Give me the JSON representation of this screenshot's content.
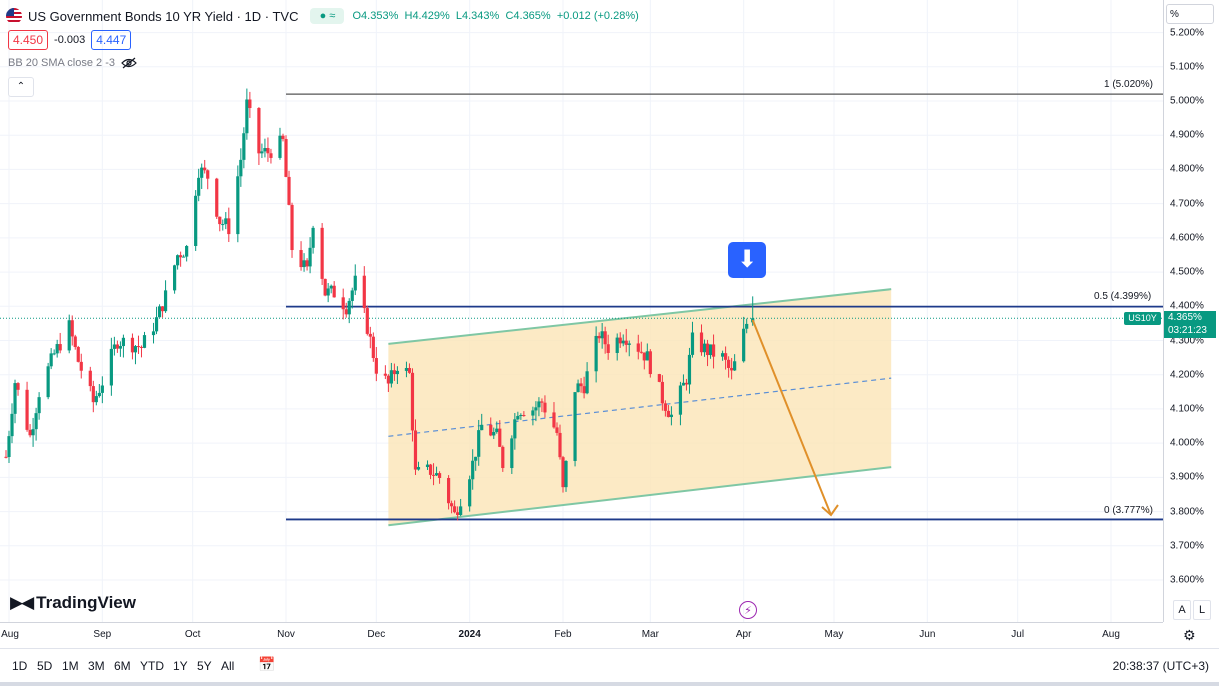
{
  "legend": {
    "title": "US Government Bonds 10 YR Yield · 1D · TVC",
    "live_icon": "market-open-icon",
    "open_label": "O",
    "open": "4.353%",
    "high_label": "H",
    "high": "4.429%",
    "low_label": "L",
    "low": "4.343%",
    "close_label": "C",
    "close": "4.365%",
    "change": "+0.012 (+0.28%)"
  },
  "quote": {
    "sell": "4.450",
    "spread": "-0.003",
    "buy": "4.447"
  },
  "indicator": {
    "label": "BB 20 SMA close 2 -3",
    "icon": "eye-hidden-icon"
  },
  "axis_unit": "%",
  "price_tag": {
    "symbol": "US10Y",
    "price": "4.365%",
    "countdown": "03:21:23"
  },
  "branding": {
    "name": "TradingView"
  },
  "ranges": [
    "1D",
    "5D",
    "1M",
    "3M",
    "6M",
    "YTD",
    "1Y",
    "5Y",
    "All"
  ],
  "clock": "20:38:37 (UTC+3)",
  "scale_buttons": {
    "auto": "A",
    "log": "L"
  },
  "colors": {
    "up": "#089981",
    "down": "#f23645",
    "channel": "#7fc7a4",
    "channel_fill": "#fbe5b6",
    "level_line": "#1e3a8a",
    "projection": "#e0902a"
  },
  "chart_data": {
    "type": "candlestick",
    "symbol": "US10Y",
    "yunit": "%",
    "ylim": [
      3.55,
      5.23
    ],
    "yticks": [
      "3.600%",
      "3.700%",
      "3.800%",
      "3.900%",
      "4.000%",
      "4.100%",
      "4.200%",
      "4.300%",
      "4.400%",
      "4.500%",
      "4.600%",
      "4.700%",
      "4.800%",
      "4.900%",
      "5.000%",
      "5.100%",
      "5.200%"
    ],
    "xticks": [
      {
        "label": "Aug",
        "date": "2023-08-01"
      },
      {
        "label": "Sep",
        "date": "2023-09-01"
      },
      {
        "label": "Oct",
        "date": "2023-10-01"
      },
      {
        "label": "Nov",
        "date": "2023-11-01"
      },
      {
        "label": "Dec",
        "date": "2023-12-01"
      },
      {
        "label": "2024",
        "date": "2024-01-01"
      },
      {
        "label": "Feb",
        "date": "2024-02-01"
      },
      {
        "label": "Mar",
        "date": "2024-03-01"
      },
      {
        "label": "Apr",
        "date": "2024-04-01"
      },
      {
        "label": "May",
        "date": "2024-05-01"
      },
      {
        "label": "Jun",
        "date": "2024-06-01"
      },
      {
        "label": "Jul",
        "date": "2024-07-01"
      },
      {
        "label": "Aug",
        "date": "2024-08-01"
      }
    ],
    "xlim": [
      "2023-08-01",
      "2024-08-31"
    ],
    "close_series": [
      [
        "2023-07-31",
        3.96
      ],
      [
        "2023-08-03",
        4.18
      ],
      [
        "2023-08-08",
        4.02
      ],
      [
        "2023-08-11",
        4.15
      ],
      [
        "2023-08-16",
        4.26
      ],
      [
        "2023-08-21",
        4.34
      ],
      [
        "2023-08-24",
        4.24
      ],
      [
        "2023-08-29",
        4.12
      ],
      [
        "2023-09-01",
        4.18
      ],
      [
        "2023-09-06",
        4.3
      ],
      [
        "2023-09-11",
        4.29
      ],
      [
        "2023-09-14",
        4.28
      ],
      [
        "2023-09-19",
        4.36
      ],
      [
        "2023-09-22",
        4.43
      ],
      [
        "2023-09-26",
        4.55
      ],
      [
        "2023-09-29",
        4.57
      ],
      [
        "2023-10-03",
        4.8
      ],
      [
        "2023-10-06",
        4.78
      ],
      [
        "2023-10-10",
        4.65
      ],
      [
        "2023-10-13",
        4.63
      ],
      [
        "2023-10-17",
        4.83
      ],
      [
        "2023-10-19",
        4.99
      ],
      [
        "2023-10-23",
        4.85
      ],
      [
        "2023-10-26",
        4.85
      ],
      [
        "2023-10-31",
        4.88
      ],
      [
        "2023-11-03",
        4.57
      ],
      [
        "2023-11-08",
        4.5
      ],
      [
        "2023-11-10",
        4.65
      ],
      [
        "2023-11-14",
        4.44
      ],
      [
        "2023-11-17",
        4.44
      ],
      [
        "2023-11-21",
        4.4
      ],
      [
        "2023-11-24",
        4.47
      ],
      [
        "2023-11-28",
        4.34
      ],
      [
        "2023-12-01",
        4.22
      ],
      [
        "2023-12-05",
        4.17
      ],
      [
        "2023-12-08",
        4.23
      ],
      [
        "2023-12-12",
        4.2
      ],
      [
        "2023-12-14",
        3.91
      ],
      [
        "2023-12-19",
        3.92
      ],
      [
        "2023-12-22",
        3.9
      ],
      [
        "2023-12-27",
        3.79
      ],
      [
        "2024-01-02",
        3.94
      ],
      [
        "2024-01-05",
        4.05
      ],
      [
        "2024-01-10",
        4.02
      ],
      [
        "2024-01-12",
        3.94
      ],
      [
        "2024-01-17",
        4.1
      ],
      [
        "2024-01-22",
        4.1
      ],
      [
        "2024-01-25",
        4.12
      ],
      [
        "2024-01-30",
        4.03
      ],
      [
        "2024-02-01",
        3.86
      ],
      [
        "2024-02-05",
        4.16
      ],
      [
        "2024-02-08",
        4.17
      ],
      [
        "2024-02-13",
        4.32
      ],
      [
        "2024-02-16",
        4.28
      ],
      [
        "2024-02-21",
        4.32
      ],
      [
        "2024-02-26",
        4.28
      ],
      [
        "2024-02-29",
        4.25
      ],
      [
        "2024-03-05",
        4.13
      ],
      [
        "2024-03-08",
        4.08
      ],
      [
        "2024-03-13",
        4.19
      ],
      [
        "2024-03-15",
        4.3
      ],
      [
        "2024-03-20",
        4.27
      ],
      [
        "2024-03-25",
        4.25
      ],
      [
        "2024-03-28",
        4.2
      ],
      [
        "2024-04-02",
        4.35
      ],
      [
        "2024-04-03",
        4.365
      ]
    ],
    "lines": [
      {
        "name": "fib-1",
        "label": "1 (5.020%)",
        "value": 5.02,
        "from": "2023-11-01"
      },
      {
        "name": "fib-0.5",
        "label": "0.5 (4.399%)",
        "value": 4.399,
        "from": "2023-11-01"
      },
      {
        "name": "fib-0",
        "label": "0 (3.777%)",
        "value": 3.777,
        "from": "2023-11-01"
      }
    ],
    "channel": {
      "upper": [
        [
          "2023-12-05",
          4.29
        ],
        [
          "2024-05-20",
          4.45
        ]
      ],
      "middle": [
        [
          "2023-12-05",
          4.02
        ],
        [
          "2024-05-20",
          4.19
        ]
      ],
      "lower": [
        [
          "2023-12-05",
          3.76
        ],
        [
          "2024-05-20",
          3.93
        ]
      ]
    },
    "projection": [
      [
        "2024-04-04",
        4.36
      ],
      [
        "2024-04-30",
        3.79
      ]
    ]
  }
}
